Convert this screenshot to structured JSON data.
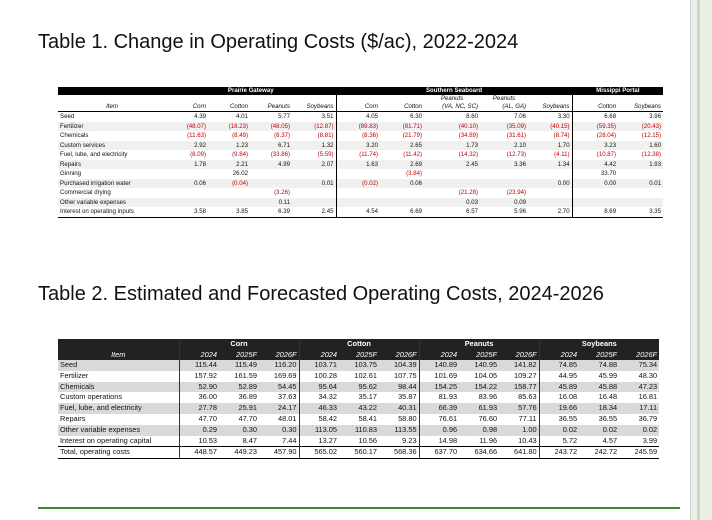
{
  "table1": {
    "title": "Table 1. Change in Operating Costs ($/ac), 2022-2024",
    "groups": [
      "Prairie Gateway",
      "Southern Seaboard",
      "Missippi Portal"
    ],
    "subheaders": [
      "Peanuts",
      "Peanuts"
    ],
    "columns": [
      "Item",
      "Corn",
      "Cotton",
      "Peanuts",
      "Soybeans",
      "Corn",
      "Cotton",
      "(VA, NC, SC)",
      "(AL, GA)",
      "Soybeans",
      "Cotton",
      "Soybeans"
    ],
    "rows": [
      {
        "item": "Seed",
        "values": [
          "4.39",
          "4.01",
          "5.77",
          "3.51",
          "4.05",
          "6.30",
          "8.60",
          "7.06",
          "3.30",
          "6.68",
          "3.96"
        ]
      },
      {
        "item": "Fertilizer",
        "values": [
          "(48.07)",
          "(18.23)",
          "(48.05)",
          "(12.87)",
          "(89.83)",
          "(81.71)",
          "(40.10)",
          "(35.09)",
          "(40.15)",
          "(59.35)",
          "(20.43)"
        ]
      },
      {
        "item": "Chemicals",
        "values": [
          "(11.63)",
          "(8.49)",
          "(8.37)",
          "(8.81)",
          "(8.36)",
          "(21.79)",
          "(34.89)",
          "(31.61)",
          "(8.74)",
          "(28.04)",
          "(12.15)"
        ]
      },
      {
        "item": "Custom services",
        "values": [
          "2.92",
          "1.23",
          "6.71",
          "1.32",
          "3.20",
          "2.65",
          "1.73",
          "2.10",
          "1.70",
          "3.23",
          "1.60"
        ]
      },
      {
        "item": "Fuel, lube, and electricity",
        "values": [
          "(8.09)",
          "(9.84)",
          "(33.86)",
          "(5.59)",
          "(11.74)",
          "(11.42)",
          "(14.32)",
          "(12.73)",
          "(4.11)",
          "(10.87)",
          "(12.38)"
        ]
      },
      {
        "item": "Repairs",
        "values": [
          "1.78",
          "2.21",
          "4.99",
          "2.07",
          "1.63",
          "2.69",
          "2.45",
          "3.36",
          "1.34",
          "4.42",
          "1.93"
        ]
      },
      {
        "item": "Ginning",
        "values": [
          "",
          "26.02",
          "",
          "",
          "",
          "(3.84)",
          "",
          "",
          "",
          "33.70",
          ""
        ]
      },
      {
        "item": "Purchased irrigation water",
        "values": [
          "0.06",
          "(0.04)",
          "",
          "0.01",
          "(0.02)",
          "0.06",
          "",
          "",
          "0.00",
          "0.00",
          "0.01"
        ]
      },
      {
        "item": "Commercial drying",
        "values": [
          "",
          "",
          "(3.26)",
          "",
          "",
          "",
          "(21.28)",
          "(23.94)",
          "",
          "",
          ""
        ]
      },
      {
        "item": "Other variable expenses",
        "values": [
          "",
          "",
          "0.11",
          "",
          "",
          "",
          "0.03",
          "0.09",
          "",
          "",
          ""
        ]
      },
      {
        "item": "Interest on operating inputs",
        "values": [
          "3.58",
          "3.85",
          "6.39",
          "2.45",
          "4.54",
          "6.69",
          "6.57",
          "5.96",
          "2.70",
          "8.69",
          "3.35"
        ]
      }
    ]
  },
  "table2": {
    "title": "Table 2. Estimated and Forecasted Operating Costs, 2024-2026",
    "groups": [
      "Corn",
      "Cotton",
      "Peanuts",
      "Soybeans"
    ],
    "item_header": "Item",
    "years": [
      "2024",
      "2025F",
      "2026F",
      "2024",
      "2025F",
      "2026F",
      "2024",
      "2025F",
      "2026F",
      "2024",
      "2025F",
      "2026F"
    ],
    "rows": [
      {
        "item": "Seed",
        "values": [
          "115.44",
          "115.49",
          "116.20",
          "103.71",
          "103.75",
          "104.39",
          "140.89",
          "140.95",
          "141.82",
          "74.85",
          "74.88",
          "75.34"
        ]
      },
      {
        "item": "Fertilizer",
        "values": [
          "157.92",
          "161.59",
          "169.69",
          "100.28",
          "102.61",
          "107.75",
          "101.69",
          "104.05",
          "109.27",
          "44.95",
          "45.99",
          "48.30"
        ]
      },
      {
        "item": "Chemicals",
        "values": [
          "52.90",
          "52.89",
          "54.45",
          "95.64",
          "95.62",
          "98.44",
          "154.25",
          "154.22",
          "158.77",
          "45.89",
          "45.88",
          "47.23"
        ]
      },
      {
        "item": "Custom operations",
        "values": [
          "36.00",
          "36.89",
          "37.63",
          "34.32",
          "35.17",
          "35.87",
          "81.93",
          "83.96",
          "85.63",
          "16.08",
          "16.48",
          "16.81"
        ]
      },
      {
        "item": "Fuel, lube, and electricity",
        "values": [
          "27.78",
          "25.91",
          "24.17",
          "46.33",
          "43.22",
          "40.31",
          "66.39",
          "61.93",
          "57.76",
          "19.66",
          "18.34",
          "17.11"
        ]
      },
      {
        "item": "Repairs",
        "values": [
          "47.70",
          "47.70",
          "48.01",
          "58.42",
          "58.41",
          "58.80",
          "76.61",
          "76.60",
          "77.11",
          "36.55",
          "36.55",
          "36.79"
        ]
      },
      {
        "item": "Other variable expenses",
        "values": [
          "0.29",
          "0.30",
          "0.30",
          "113.05",
          "110.83",
          "113.55",
          "0.96",
          "0.98",
          "1.00",
          "0.02",
          "0.02",
          "0.02"
        ]
      },
      {
        "item": "Interest on operating capital",
        "values": [
          "10.53",
          "8.47",
          "7.44",
          "13.27",
          "10.56",
          "9.23",
          "14.98",
          "11.96",
          "10.43",
          "5.72",
          "4.57",
          "3.99"
        ]
      },
      {
        "item": "Total, operating costs",
        "values": [
          "448.57",
          "449.23",
          "457.90",
          "565.02",
          "560.17",
          "568.36",
          "637.70",
          "634.66",
          "641.80",
          "243.72",
          "242.72",
          "245.59"
        ]
      }
    ]
  }
}
